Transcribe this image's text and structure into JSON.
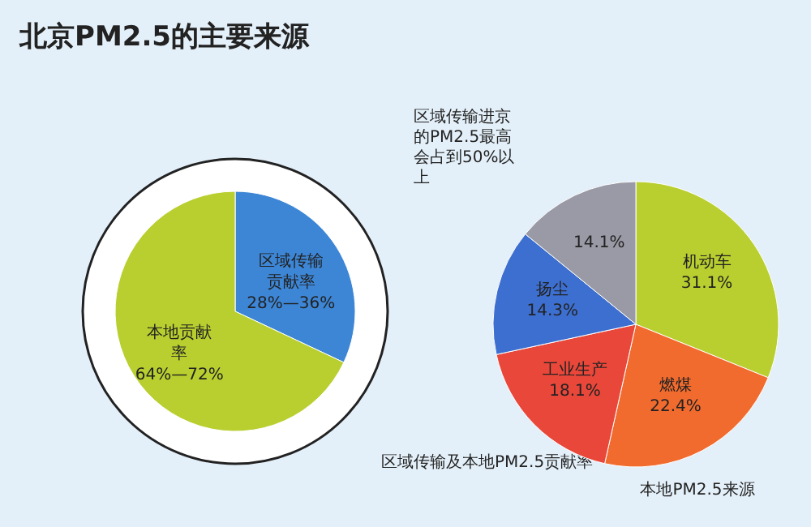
{
  "chart_data": [
    {
      "type": "pie",
      "title": "北京PM2.5的主要来源",
      "categories": [
        "区域传输贡献率",
        "本地贡献率"
      ],
      "values": [
        32,
        68
      ],
      "colors": [
        "#3d86d6",
        "#b9cf2f"
      ],
      "annotations": [
        {
          "text": "28%—36%",
          "x": "区域传输贡献率"
        },
        {
          "text": "64%—72%",
          "x": "本地贡献率"
        },
        "区域传输进京的PM2.5最高会占到50%以上",
        "区域传输及本地PM2.5贡献率"
      ]
    },
    {
      "type": "pie",
      "categories": [
        "机动车",
        "燃煤",
        "工业生产",
        "扬尘",
        null
      ],
      "values": [
        31.1,
        22.4,
        18.1,
        14.3,
        14.1
      ],
      "value_labels": [
        "31.1%",
        "22.4%",
        "18.1%",
        "14.3%",
        "14.1%"
      ],
      "colors": [
        "#b9cf2f",
        "#f26b2e",
        "#e8473a",
        "#3d6fd0",
        "#9a9aa6"
      ],
      "annotations": [
        "本地PM2.5来源"
      ]
    }
  ]
}
